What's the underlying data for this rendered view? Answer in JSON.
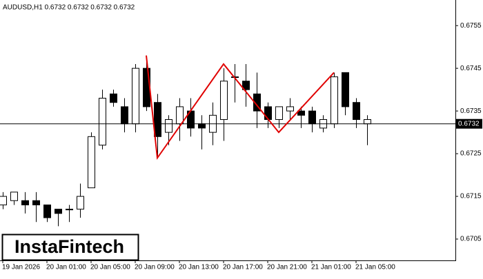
{
  "chart_data": {
    "type": "candlestick",
    "title": "AUDUSD,H1  0.6732 0.6732 0.6732 0.6732",
    "logo": "InstaFintech",
    "categories": [
      "19 Jan 2026",
      null,
      null,
      null,
      "20 Jan 01:00",
      null,
      null,
      null,
      "20 Jan 05:00",
      null,
      null,
      null,
      "20 Jan 09:00",
      null,
      null,
      null,
      "20 Jan 13:00",
      null,
      null,
      null,
      "20 Jan 17:00",
      null,
      null,
      null,
      "20 Jan 21:00",
      null,
      null,
      null,
      "21 Jan 01:00",
      null,
      null,
      null,
      "21 Jan 05:00",
      null
    ],
    "open": [
      0.6713,
      0.6714,
      0.6714,
      0.6714,
      0.6713,
      0.6712,
      0.6712,
      0.6712,
      0.6717,
      0.6727,
      0.6739,
      0.6736,
      0.6732,
      0.6745,
      0.6737,
      0.673,
      0.6732,
      0.6735,
      0.6732,
      0.673,
      0.6733,
      0.6743,
      0.6742,
      0.6739,
      0.6736,
      0.6733,
      0.6735,
      0.6735,
      0.6735,
      0.6731,
      0.6732,
      0.6744,
      0.6737,
      0.6732
    ],
    "high": [
      0.6716,
      0.6716,
      0.6716,
      0.6716,
      0.6713,
      0.6712,
      0.6713,
      0.6718,
      0.673,
      0.674,
      0.674,
      0.6738,
      0.6746,
      0.6748,
      0.6739,
      0.6734,
      0.6738,
      0.6738,
      0.6734,
      0.6737,
      0.6745,
      0.6746,
      0.6746,
      0.6744,
      0.6737,
      0.6736,
      0.6738,
      0.6736,
      0.6736,
      0.6734,
      0.6744,
      0.6744,
      0.6738,
      0.6734
    ],
    "low": [
      0.6712,
      0.6713,
      0.6711,
      0.6709,
      0.6709,
      0.6708,
      0.6709,
      0.671,
      0.6717,
      0.6726,
      0.6736,
      0.673,
      0.673,
      0.6735,
      0.6724,
      0.6727,
      0.6728,
      0.6729,
      0.6726,
      0.6727,
      0.6728,
      0.6737,
      0.6736,
      0.6731,
      0.6731,
      0.6731,
      0.6733,
      0.6731,
      0.673,
      0.673,
      0.6731,
      0.6734,
      0.6731,
      0.6727
    ],
    "close": [
      0.6715,
      0.6716,
      0.6713,
      0.6713,
      0.671,
      0.6711,
      0.6712,
      0.6715,
      0.6729,
      0.6738,
      0.6737,
      0.6732,
      0.6745,
      0.6736,
      0.6729,
      0.6733,
      0.6736,
      0.6731,
      0.6731,
      0.6734,
      0.6742,
      0.6743,
      0.674,
      0.6735,
      0.6733,
      0.6736,
      0.6736,
      0.6734,
      0.6732,
      0.6733,
      0.6743,
      0.6736,
      0.6733,
      0.6733
    ],
    "pattern": {
      "color": "#e00000",
      "at": [
        13,
        14,
        20,
        25,
        30
      ],
      "values": [
        0.6748,
        0.6724,
        0.6746,
        0.673,
        0.6744
      ]
    },
    "last_price": 0.6732,
    "ylim": [
      0.67,
      0.6761
    ],
    "yticks": [
      0.6705,
      0.6715,
      0.6725,
      0.6735,
      0.6745,
      0.6755
    ]
  }
}
